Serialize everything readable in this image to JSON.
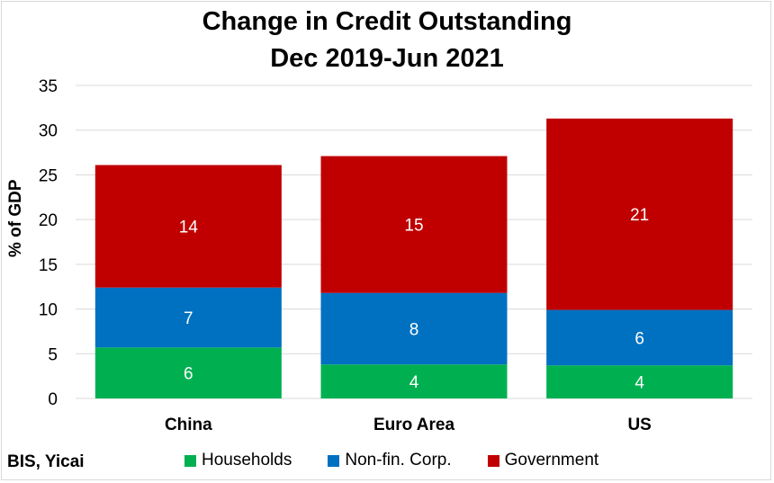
{
  "chart_data": {
    "type": "bar",
    "stacked": true,
    "title": "Change in Credit Outstanding",
    "subtitle": "Dec 2019-Jun 2021",
    "ylabel": "% of GDP",
    "ylim": [
      0,
      35
    ],
    "yticks": [
      "0",
      "5",
      "10",
      "15",
      "20",
      "25",
      "30",
      "35"
    ],
    "grid": true,
    "legend_position": "bottom",
    "categories": [
      "China",
      "Euro Area",
      "US"
    ],
    "series": [
      {
        "name": "Households",
        "color": "#00b050",
        "values": [
          5.7,
          3.8,
          3.7
        ],
        "labels": [
          "6",
          "4",
          "4"
        ]
      },
      {
        "name": "Non-fin. Corp.",
        "color": "#0070c0",
        "values": [
          6.7,
          8.0,
          6.2
        ],
        "labels": [
          "7",
          "8",
          "6"
        ]
      },
      {
        "name": "Government",
        "color": "#c00000",
        "values": [
          13.7,
          15.3,
          21.4
        ],
        "labels": [
          "14",
          "15",
          "21"
        ]
      }
    ],
    "source": "BIS, Yicai"
  }
}
